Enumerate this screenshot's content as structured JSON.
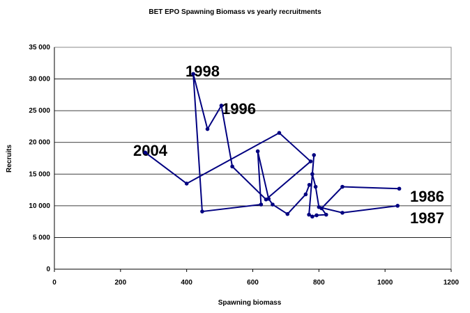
{
  "chart_data": {
    "type": "line",
    "title": "BET EPO Spawning Biomass vs yearly recruitments",
    "x_label": "Spawning biomass",
    "y_label": "Recruits",
    "annotations": [
      "1998",
      "1996",
      "2004",
      "1986",
      "1987"
    ],
    "series": [
      {
        "color": "#000080",
        "x": [
          1043,
          871,
          808,
          822,
          793,
          780,
          770,
          785,
          780,
          790,
          800,
          871,
          1038,
          null,
          771,
          760,
          705,
          660,
          648,
          615,
          625,
          447,
          420,
          463,
          505,
          538,
          640,
          775,
          680,
          400,
          275
        ],
        "values": [
          12700,
          13000,
          9600,
          8600,
          8500,
          8300,
          8600,
          18000,
          15000,
          13000,
          9800,
          8900,
          10000,
          null,
          13300,
          11800,
          8700,
          10200,
          11100,
          18600,
          10200,
          9100,
          30800,
          22100,
          25800,
          16200,
          11000,
          17000,
          21500,
          13500,
          18400
        ]
      }
    ],
    "xlim": [
      0,
      1200
    ],
    "xticks": [
      0,
      200,
      400,
      600,
      800,
      1000,
      1200
    ],
    "ylim": [
      0,
      35000
    ],
    "yticks": [
      0,
      {
        "value": 5000,
        "label": "5 000"
      },
      {
        "value": 10000,
        "label": "10 000"
      },
      {
        "value": 15000,
        "label": "15 000"
      },
      {
        "value": 20000,
        "label": "20 000"
      },
      {
        "value": 25000,
        "label": "25 000"
      },
      {
        "value": 30000,
        "label": "30 000"
      },
      {
        "value": 35000,
        "label": "35 000"
      }
    ],
    "grid": true
  }
}
